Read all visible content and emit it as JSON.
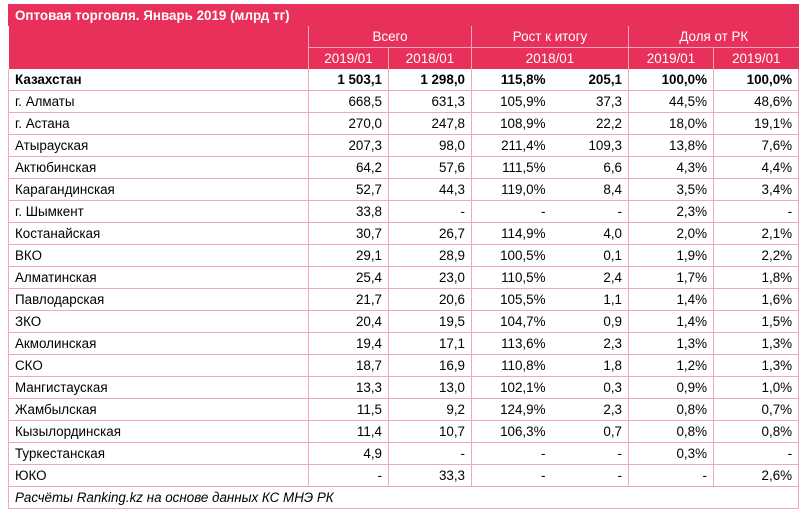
{
  "title": "Оптовая торговля. Январь 2019 (млрд тг)",
  "headers": {
    "group_total": "Всего",
    "group_growth": "Рост к итогу",
    "group_share": "Доля от РК",
    "sub_total_1": "2019/01",
    "sub_total_2": "2018/01",
    "sub_growth": "2018/01",
    "sub_share_1": "2019/01",
    "sub_share_2": "2019/01"
  },
  "rows": [
    {
      "name": "Казахстан",
      "v2019": "1 503,1",
      "v2018": "1 298,0",
      "growth_pct": "115,8%",
      "growth_abs": "205,1",
      "share_1": "100,0%",
      "share_2": "100,0%"
    },
    {
      "name": "г. Алматы",
      "v2019": "668,5",
      "v2018": "631,3",
      "growth_pct": "105,9%",
      "growth_abs": "37,3",
      "share_1": "44,5%",
      "share_2": "48,6%"
    },
    {
      "name": "г. Астана",
      "v2019": "270,0",
      "v2018": "247,8",
      "growth_pct": "108,9%",
      "growth_abs": "22,2",
      "share_1": "18,0%",
      "share_2": "19,1%"
    },
    {
      "name": "Атырауская",
      "v2019": "207,3",
      "v2018": "98,0",
      "growth_pct": "211,4%",
      "growth_abs": "109,3",
      "share_1": "13,8%",
      "share_2": "7,6%"
    },
    {
      "name": "Актюбинская",
      "v2019": "64,2",
      "v2018": "57,6",
      "growth_pct": "111,5%",
      "growth_abs": "6,6",
      "share_1": "4,3%",
      "share_2": "4,4%"
    },
    {
      "name": "Карагандинская",
      "v2019": "52,7",
      "v2018": "44,3",
      "growth_pct": "119,0%",
      "growth_abs": "8,4",
      "share_1": "3,5%",
      "share_2": "3,4%"
    },
    {
      "name": "г. Шымкент",
      "v2019": "33,8",
      "v2018": "-",
      "growth_pct": "-",
      "growth_abs": "-",
      "share_1": "2,3%",
      "share_2": "-"
    },
    {
      "name": "Костанайская",
      "v2019": "30,7",
      "v2018": "26,7",
      "growth_pct": "114,9%",
      "growth_abs": "4,0",
      "share_1": "2,0%",
      "share_2": "2,1%"
    },
    {
      "name": "ВКО",
      "v2019": "29,1",
      "v2018": "28,9",
      "growth_pct": "100,5%",
      "growth_abs": "0,1",
      "share_1": "1,9%",
      "share_2": "2,2%"
    },
    {
      "name": "Алматинская",
      "v2019": "25,4",
      "v2018": "23,0",
      "growth_pct": "110,5%",
      "growth_abs": "2,4",
      "share_1": "1,7%",
      "share_2": "1,8%"
    },
    {
      "name": "Павлодарская",
      "v2019": "21,7",
      "v2018": "20,6",
      "growth_pct": "105,5%",
      "growth_abs": "1,1",
      "share_1": "1,4%",
      "share_2": "1,6%"
    },
    {
      "name": "ЗКО",
      "v2019": "20,4",
      "v2018": "19,5",
      "growth_pct": "104,7%",
      "growth_abs": "0,9",
      "share_1": "1,4%",
      "share_2": "1,5%"
    },
    {
      "name": "Акмолинская",
      "v2019": "19,4",
      "v2018": "17,1",
      "growth_pct": "113,6%",
      "growth_abs": "2,3",
      "share_1": "1,3%",
      "share_2": "1,3%"
    },
    {
      "name": "СКО",
      "v2019": "18,7",
      "v2018": "16,9",
      "growth_pct": "110,8%",
      "growth_abs": "1,8",
      "share_1": "1,2%",
      "share_2": "1,3%"
    },
    {
      "name": "Мангистауская",
      "v2019": "13,3",
      "v2018": "13,0",
      "growth_pct": "102,1%",
      "growth_abs": "0,3",
      "share_1": "0,9%",
      "share_2": "1,0%"
    },
    {
      "name": "Жамбылская",
      "v2019": "11,5",
      "v2018": "9,2",
      "growth_pct": "124,9%",
      "growth_abs": "2,3",
      "share_1": "0,8%",
      "share_2": "0,7%"
    },
    {
      "name": "Кызылординская",
      "v2019": "11,4",
      "v2018": "10,7",
      "growth_pct": "106,3%",
      "growth_abs": "0,7",
      "share_1": "0,8%",
      "share_2": "0,8%"
    },
    {
      "name": "Туркестанская",
      "v2019": "4,9",
      "v2018": "-",
      "growth_pct": "-",
      "growth_abs": "-",
      "share_1": "0,3%",
      "share_2": "-"
    },
    {
      "name": "ЮКО",
      "v2019": "-",
      "v2018": "33,3",
      "growth_pct": "-",
      "growth_abs": "-",
      "share_1": "-",
      "share_2": "2,6%"
    }
  ],
  "footer": "Расчёты Ranking.kz на основе данных КС МНЭ РК"
}
